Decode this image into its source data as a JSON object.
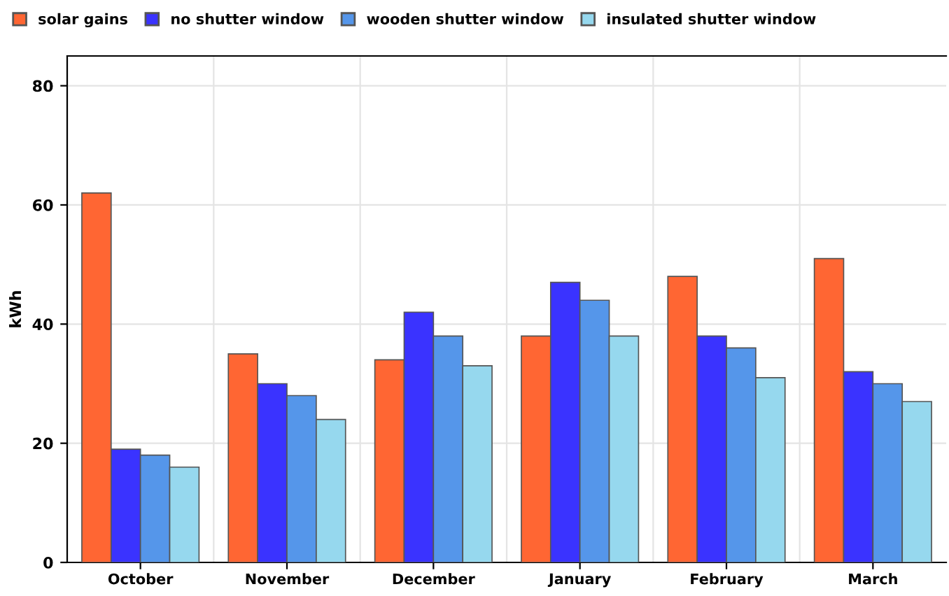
{
  "chart_data": {
    "type": "bar",
    "ylabel": "kWh",
    "categories": [
      "October",
      "November",
      "December",
      "January",
      "February",
      "March"
    ],
    "series": [
      {
        "name": "solar gains",
        "color": "#ff6633",
        "values": [
          62,
          35,
          34,
          38,
          48,
          51
        ]
      },
      {
        "name": "no shutter window",
        "color": "#3a33ff",
        "values": [
          19,
          30,
          42,
          47,
          38,
          32
        ]
      },
      {
        "name": "wooden shutter window",
        "color": "#5596ea",
        "values": [
          18,
          28,
          38,
          44,
          36,
          30
        ]
      },
      {
        "name": "insulated shutter window",
        "color": "#96d8ee",
        "values": [
          16,
          24,
          33,
          38,
          31,
          27
        ]
      }
    ],
    "ylim": [
      0,
      85
    ],
    "yticks": [
      0,
      20,
      40,
      60,
      80
    ],
    "grid": true,
    "legend": "top left"
  }
}
